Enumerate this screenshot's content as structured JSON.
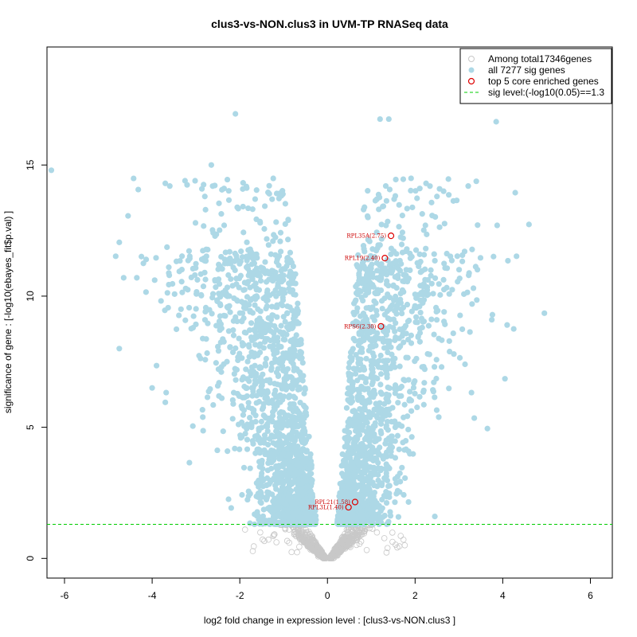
{
  "chart_data": {
    "type": "scatter",
    "title": "clus3-vs-NON.clus3 in UVM-TP RNASeq data",
    "xlabel": "log2 fold change in expression level : [clus3-vs-NON.clus3 ]",
    "ylabel": "significance of gene : [-log10(ebayes_fit$p.val) ]",
    "xlim": [
      -6.4,
      6.5
    ],
    "ylim": [
      -0.75,
      19.5
    ],
    "x_ticks": [
      -6,
      -4,
      -2,
      0,
      2,
      4,
      6
    ],
    "y_ticks": [
      0,
      5,
      10,
      15
    ],
    "sig_level": 1.3,
    "colors": {
      "non_sig": "#c8c8c8",
      "sig": "#add8e6",
      "core": "#dd0000",
      "threshold": "#00cc00"
    },
    "legend": {
      "position": "top-right",
      "entries": [
        "Among total17346genes",
        "all 7277 sig genes",
        "top 5 core enriched genes",
        "sig level:(-log10(0.05)==1.3"
      ]
    },
    "core_genes": [
      {
        "label": "RPL35A(2.75)",
        "x": 1.45,
        "y": 12.3
      },
      {
        "label": "RPL19(2.40)",
        "x": 1.31,
        "y": 11.45
      },
      {
        "label": "RPS6(2.30)",
        "x": 1.22,
        "y": 8.85
      },
      {
        "label": "RPL21(1.58)",
        "x": 0.63,
        "y": 2.15
      },
      {
        "label": "RPL3L(1.40)",
        "x": 0.48,
        "y": 1.95
      }
    ],
    "outliers": [
      {
        "x": -6.3,
        "y": 14.8
      },
      {
        "x": -2.1,
        "y": 16.95
      },
      {
        "x": 1.2,
        "y": 16.75
      },
      {
        "x": 1.4,
        "y": 16.75
      },
      {
        "x": 3.85,
        "y": 16.65
      },
      {
        "x": 4.95,
        "y": 9.35
      },
      {
        "x": 4.25,
        "y": 8.75
      },
      {
        "x": 4.1,
        "y": 8.9
      },
      {
        "x": 4.05,
        "y": 6.85
      },
      {
        "x": -4.75,
        "y": 12.05
      },
      {
        "x": -4.65,
        "y": 10.7
      },
      {
        "x": -4.75,
        "y": 8.0
      },
      {
        "x": -3.15,
        "y": 3.65
      },
      {
        "x": 2.45,
        "y": 1.6
      },
      {
        "x": 1.85,
        "y": 2.15
      },
      {
        "x": -4.2,
        "y": 11.25
      },
      {
        "x": -4.35,
        "y": 10.7
      },
      {
        "x": -3.7,
        "y": 14.3
      },
      {
        "x": -3.25,
        "y": 14.4
      },
      {
        "x": -2.65,
        "y": 15.0
      },
      {
        "x": -1.65,
        "y": 13.7
      },
      {
        "x": 2.25,
        "y": 14.3
      },
      {
        "x": 2.65,
        "y": 14.0
      },
      {
        "x": 2.95,
        "y": 13.65
      },
      {
        "x": -3.9,
        "y": 7.35
      },
      {
        "x": -3.7,
        "y": 5.95
      },
      {
        "x": 3.65,
        "y": 4.95
      },
      {
        "x": 3.35,
        "y": 5.35
      },
      {
        "x": 3.75,
        "y": 9.1
      },
      {
        "x": 3.3,
        "y": 9.7
      }
    ]
  }
}
